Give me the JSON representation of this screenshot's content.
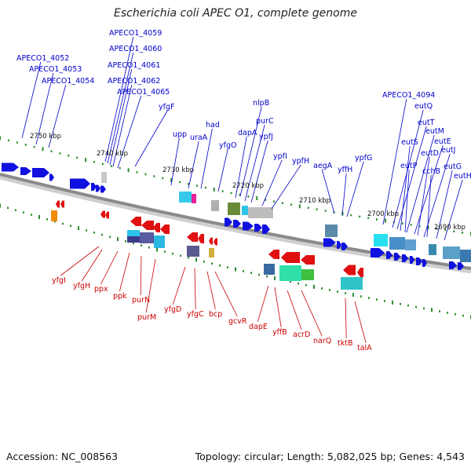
{
  "title": "Escherichia coli APEC O1, complete genome",
  "footer": {
    "accession": "Accession: NC_008563",
    "summary": "Topology: circular; Length: 5,082,025 bp; Genes: 4,543"
  },
  "colors": {
    "forward_label": "#0000cc",
    "reverse_label": "#cc0000",
    "forward_gene": "#1010e0",
    "reverse_gene": "#e01010",
    "backbone": "#8a8a8a",
    "tick": "#2e8b2e"
  },
  "ticks": [
    "2750 kbp",
    "2740 kbp",
    "2730 kbp",
    "2720 kbp",
    "2710 kbp",
    "2700 kbp",
    "2690 kbp"
  ],
  "forward_labels": [
    "APECO1_4052",
    "APECO1_4053",
    "APECO1_4054",
    "APECO1_4059",
    "APECO1_4060",
    "APECO1_4061",
    "APECO1_4062",
    "APECO1_4065",
    "yfgF",
    "upp",
    "uraA",
    "had",
    "yfgO",
    "nlpB",
    "dapA",
    "purC",
    "ypfJ",
    "ypfI",
    "ypfH",
    "aegA",
    "yffH",
    "ypfG",
    "APECO1_4094",
    "eutQ",
    "eutT",
    "eutS",
    "eutM",
    "eutE",
    "eutP",
    "eutD",
    "eutJ",
    "cchB",
    "eutG",
    "eutH"
  ],
  "reverse_labels": [
    "yfgI",
    "yfgH",
    "ppx",
    "ppk",
    "purN",
    "purM",
    "yfgD",
    "yfgC",
    "bcp",
    "gcvR",
    "dapE",
    "yffB",
    "acrD",
    "narQ",
    "tktB",
    "talA"
  ]
}
